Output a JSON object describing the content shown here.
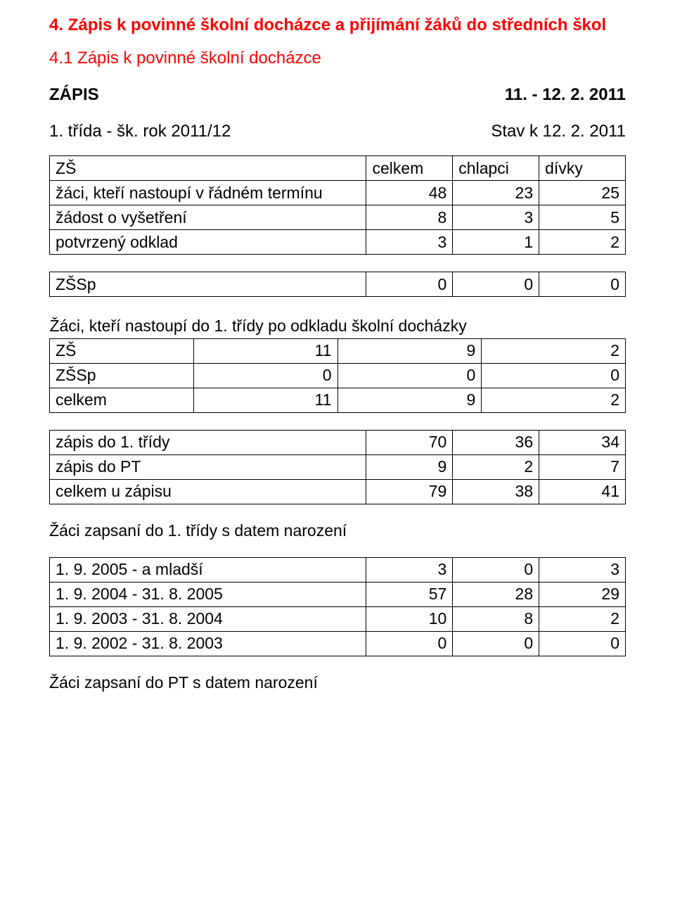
{
  "heading_main": "4. Zápis k povinné školní docházce a přijímání žáků do středních škol",
  "heading_sub": "4.1 Zápis k povinné školní docházce",
  "zapis": {
    "label": "ZÁPIS",
    "date": "11. - 12. 2. 2011"
  },
  "trida": {
    "label": "1. třída  -  šk. rok  2011/12",
    "state": "Stav k  12. 2. 2011"
  },
  "table1": {
    "header": [
      "ZŠ",
      "celkem",
      "chlapci",
      "dívky"
    ],
    "rows": [
      [
        "žáci, kteří nastoupí v řádném termínu",
        "48",
        "23",
        "25"
      ],
      [
        "žádost o vyšetření",
        "8",
        "3",
        "5"
      ],
      [
        "potvrzený odklad",
        "3",
        "1",
        "2"
      ]
    ]
  },
  "table2": {
    "rows": [
      [
        "ZŠSp",
        "0",
        "0",
        "0"
      ]
    ]
  },
  "table3": {
    "caption": "Žáci, kteří nastoupí do 1. třídy po odkladu školní docházky",
    "rows": [
      [
        "ZŠ",
        "11",
        "9",
        "2"
      ],
      [
        "ZŠSp",
        "0",
        "0",
        "0"
      ],
      [
        "celkem",
        "11",
        "9",
        "2"
      ]
    ]
  },
  "table4": {
    "rows": [
      [
        "zápis do 1. třídy",
        "70",
        "36",
        "34"
      ],
      [
        "zápis do PT",
        "9",
        "2",
        "7"
      ],
      [
        "celkem u zápisu",
        "79",
        "38",
        "41"
      ]
    ]
  },
  "section1": "Žáci zapsaní do 1. třídy s datem narození",
  "table5": {
    "rows": [
      [
        "1. 9. 2005 - a mladší",
        "3",
        "0",
        "3"
      ],
      [
        "1. 9. 2004 - 31. 8. 2005",
        "57",
        "28",
        "29"
      ],
      [
        "1. 9. 2003 - 31. 8. 2004",
        "10",
        "8",
        "2"
      ],
      [
        "1. 9. 2002 - 31. 8. 2003",
        "0",
        "0",
        "0"
      ]
    ]
  },
  "section2": "Žáci zapsaní do PT  s datem narození"
}
